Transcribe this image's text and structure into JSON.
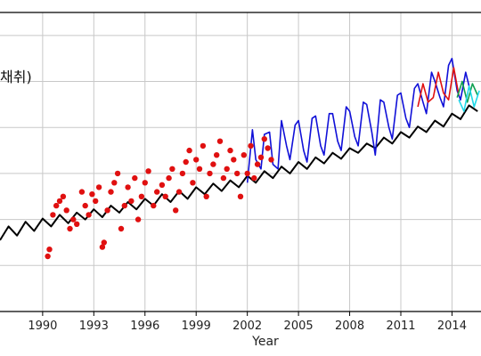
{
  "chart_data": {
    "type": "line",
    "xlabel": "Year",
    "ylabel": "",
    "legend_fragment": "채취)",
    "xlim": [
      1987.5,
      2015.7
    ],
    "ylim": [
      0,
      6.5
    ],
    "x_ticks": [
      1990,
      1993,
      1996,
      1999,
      2002,
      2005,
      2008,
      2011,
      2014
    ],
    "x_tick_labels": [
      "1990",
      "1993",
      "1996",
      "1999",
      "2002",
      "2005",
      "2008",
      "2011",
      "2014"
    ],
    "y_ticks": [
      0,
      1,
      2,
      3,
      4,
      5,
      6
    ],
    "y_tick_labels": [],
    "grid": true,
    "colors": {
      "background": "#ffffff",
      "grid": "#c8c8c8",
      "axes": "#000000",
      "trend": "#000000",
      "blue": "#1010d8",
      "red_line": "#e01010",
      "green": "#10a050",
      "cyan": "#20d8e8",
      "points": "#e01010"
    },
    "series": [
      {
        "key": "trend",
        "style": "line",
        "color": "#000000",
        "x": [
          1987.5,
          1988.0,
          1988.5,
          1989.0,
          1989.5,
          1990.0,
          1990.5,
          1991.0,
          1991.5,
          1992.0,
          1992.5,
          1993.0,
          1993.5,
          1994.0,
          1994.5,
          1995.0,
          1995.5,
          1996.0,
          1996.5,
          1997.0,
          1997.5,
          1998.0,
          1998.5,
          1999.0,
          1999.5,
          2000.0,
          2000.5,
          2001.0,
          2001.5,
          2002.0,
          2002.5,
          2003.0,
          2003.5,
          2004.0,
          2004.5,
          2005.0,
          2005.5,
          2006.0,
          2006.5,
          2007.0,
          2007.5,
          2008.0,
          2008.5,
          2009.0,
          2009.5,
          2010.0,
          2010.5,
          2011.0,
          2011.5,
          2012.0,
          2012.5,
          2013.0,
          2013.5,
          2014.0,
          2014.5,
          2015.0,
          2015.5
        ],
        "y": [
          1.55,
          1.85,
          1.65,
          1.95,
          1.75,
          2.02,
          1.85,
          2.1,
          1.92,
          2.15,
          2.0,
          2.22,
          2.05,
          2.3,
          2.15,
          2.38,
          2.22,
          2.45,
          2.3,
          2.55,
          2.38,
          2.62,
          2.45,
          2.7,
          2.55,
          2.78,
          2.62,
          2.85,
          2.7,
          2.95,
          2.8,
          3.05,
          2.9,
          3.15,
          3.0,
          3.25,
          3.1,
          3.35,
          3.22,
          3.45,
          3.32,
          3.55,
          3.45,
          3.65,
          3.55,
          3.78,
          3.65,
          3.9,
          3.78,
          4.02,
          3.9,
          4.15,
          4.02,
          4.3,
          4.18,
          4.48,
          4.35
        ]
      },
      {
        "key": "blue-line",
        "style": "line",
        "color": "#1010d8",
        "x": [
          2002.0,
          2002.3,
          2002.5,
          2002.8,
          2003.0,
          2003.3,
          2003.5,
          2003.8,
          2004.0,
          2004.3,
          2004.5,
          2004.8,
          2005.0,
          2005.3,
          2005.5,
          2005.8,
          2006.0,
          2006.3,
          2006.5,
          2006.8,
          2007.0,
          2007.3,
          2007.5,
          2007.8,
          2008.0,
          2008.3,
          2008.5,
          2008.8,
          2009.0,
          2009.3,
          2009.5,
          2009.8,
          2010.0,
          2010.3,
          2010.5,
          2010.8,
          2011.0,
          2011.3,
          2011.5,
          2011.8,
          2012.0,
          2012.3,
          2012.5,
          2012.8,
          2013.0,
          2013.3,
          2013.5,
          2013.8,
          2014.0,
          2014.3,
          2014.5,
          2014.8,
          2015.0
        ],
        "y": [
          2.8,
          3.95,
          3.3,
          3.1,
          3.85,
          3.9,
          3.2,
          3.1,
          4.15,
          3.6,
          3.3,
          4.05,
          4.15,
          3.5,
          3.25,
          4.2,
          4.25,
          3.6,
          3.4,
          4.3,
          4.3,
          3.7,
          3.5,
          4.45,
          4.35,
          3.8,
          3.6,
          4.55,
          4.5,
          3.9,
          3.4,
          4.6,
          4.55,
          4.0,
          3.75,
          4.7,
          4.75,
          4.2,
          4.0,
          4.85,
          4.95,
          4.55,
          4.3,
          5.2,
          5.0,
          4.65,
          4.45,
          5.35,
          5.5,
          4.8,
          4.6,
          5.2,
          4.9
        ]
      },
      {
        "key": "red-line",
        "style": "line",
        "color": "#e01010",
        "x": [
          2012.0,
          2012.3,
          2012.6,
          2012.9,
          2013.2,
          2013.5,
          2013.8,
          2014.1,
          2014.4
        ],
        "y": [
          4.45,
          4.95,
          4.55,
          4.65,
          5.2,
          4.75,
          4.6,
          5.3,
          4.7
        ]
      },
      {
        "key": "green-line",
        "style": "line",
        "color": "#10a050",
        "x": [
          2014.3,
          2014.6,
          2014.9,
          2015.2,
          2015.5
        ],
        "y": [
          4.65,
          5.0,
          4.55,
          4.95,
          4.7
        ]
      },
      {
        "key": "cyan-line",
        "style": "line",
        "color": "#20d8e8",
        "x": [
          2014.4,
          2014.7,
          2015.0,
          2015.3,
          2015.6
        ],
        "y": [
          4.6,
          4.35,
          4.9,
          4.45,
          4.8
        ]
      },
      {
        "key": "red-points",
        "style": "scatter",
        "color": "#e01010",
        "points": [
          [
            1990.3,
            1.2
          ],
          [
            1990.4,
            1.35
          ],
          [
            1990.6,
            2.1
          ],
          [
            1990.8,
            2.3
          ],
          [
            1991.0,
            2.4
          ],
          [
            1991.2,
            2.5
          ],
          [
            1991.4,
            2.2
          ],
          [
            1991.6,
            1.8
          ],
          [
            1991.8,
            2.0
          ],
          [
            1992.0,
            1.9
          ],
          [
            1992.3,
            2.6
          ],
          [
            1992.5,
            2.3
          ],
          [
            1992.7,
            2.1
          ],
          [
            1992.9,
            2.55
          ],
          [
            1993.1,
            2.4
          ],
          [
            1993.3,
            2.7
          ],
          [
            1993.5,
            1.4
          ],
          [
            1993.6,
            1.5
          ],
          [
            1993.8,
            2.2
          ],
          [
            1994.0,
            2.6
          ],
          [
            1994.2,
            2.8
          ],
          [
            1994.4,
            3.0
          ],
          [
            1994.6,
            1.8
          ],
          [
            1994.8,
            2.3
          ],
          [
            1995.0,
            2.7
          ],
          [
            1995.2,
            2.4
          ],
          [
            1995.4,
            2.9
          ],
          [
            1995.6,
            2.0
          ],
          [
            1995.8,
            2.5
          ],
          [
            1996.0,
            2.8
          ],
          [
            1996.2,
            3.05
          ],
          [
            1996.5,
            2.3
          ],
          [
            1996.7,
            2.6
          ],
          [
            1997.0,
            2.75
          ],
          [
            1997.2,
            2.5
          ],
          [
            1997.4,
            2.9
          ],
          [
            1997.6,
            3.1
          ],
          [
            1997.8,
            2.2
          ],
          [
            1998.0,
            2.6
          ],
          [
            1998.2,
            3.0
          ],
          [
            1998.4,
            3.25
          ],
          [
            1998.6,
            3.5
          ],
          [
            1998.8,
            2.8
          ],
          [
            1999.0,
            3.3
          ],
          [
            1999.2,
            3.1
          ],
          [
            1999.4,
            3.6
          ],
          [
            1999.6,
            2.5
          ],
          [
            1999.8,
            3.0
          ],
          [
            2000.0,
            3.2
          ],
          [
            2000.2,
            3.4
          ],
          [
            2000.4,
            3.7
          ],
          [
            2000.6,
            2.9
          ],
          [
            2000.8,
            3.1
          ],
          [
            2001.0,
            3.5
          ],
          [
            2001.2,
            3.3
          ],
          [
            2001.4,
            3.0
          ],
          [
            2001.6,
            2.5
          ],
          [
            2001.8,
            3.4
          ],
          [
            2002.0,
            3.0
          ],
          [
            2002.2,
            3.6
          ],
          [
            2002.4,
            2.9
          ],
          [
            2002.6,
            3.2
          ],
          [
            2002.8,
            3.35
          ],
          [
            2003.0,
            3.75
          ],
          [
            2003.2,
            3.55
          ],
          [
            2003.4,
            3.3
          ]
        ]
      }
    ]
  }
}
